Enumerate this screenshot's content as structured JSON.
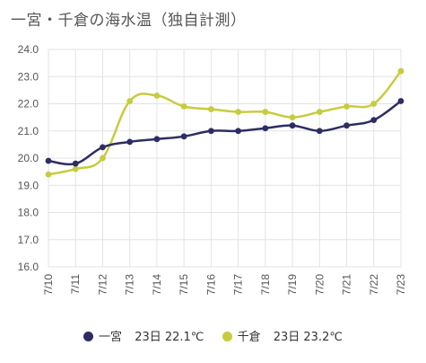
{
  "chart_data": {
    "type": "line",
    "title": "一宮・千倉の海水温（独自計測）",
    "categories": [
      "7/10",
      "7/11",
      "7/12",
      "7/13",
      "7/14",
      "7/15",
      "7/16",
      "7/17",
      "7/18",
      "7/19",
      "7/20",
      "7/21",
      "7/22",
      "7/23"
    ],
    "ylim": [
      16.0,
      24.0
    ],
    "yticks": [
      "16.0",
      "17.0",
      "18.0",
      "19.0",
      "20.0",
      "21.0",
      "22.0",
      "23.0",
      "24.0"
    ],
    "grid": true,
    "legend_position": "bottom",
    "series": [
      {
        "name": "一宮",
        "color": "#2e2d63",
        "values": [
          19.9,
          19.8,
          20.4,
          20.6,
          20.7,
          20.8,
          21.0,
          21.0,
          21.1,
          21.2,
          21.0,
          21.2,
          21.4,
          22.1
        ],
        "legend_text": "23日 22.1℃"
      },
      {
        "name": "千倉",
        "color": "#c6cc3f",
        "values": [
          19.4,
          19.6,
          20.0,
          22.1,
          22.3,
          21.9,
          21.8,
          21.7,
          21.7,
          21.5,
          21.7,
          21.9,
          22.0,
          23.2
        ],
        "legend_text": "23日 23.2℃"
      }
    ]
  }
}
